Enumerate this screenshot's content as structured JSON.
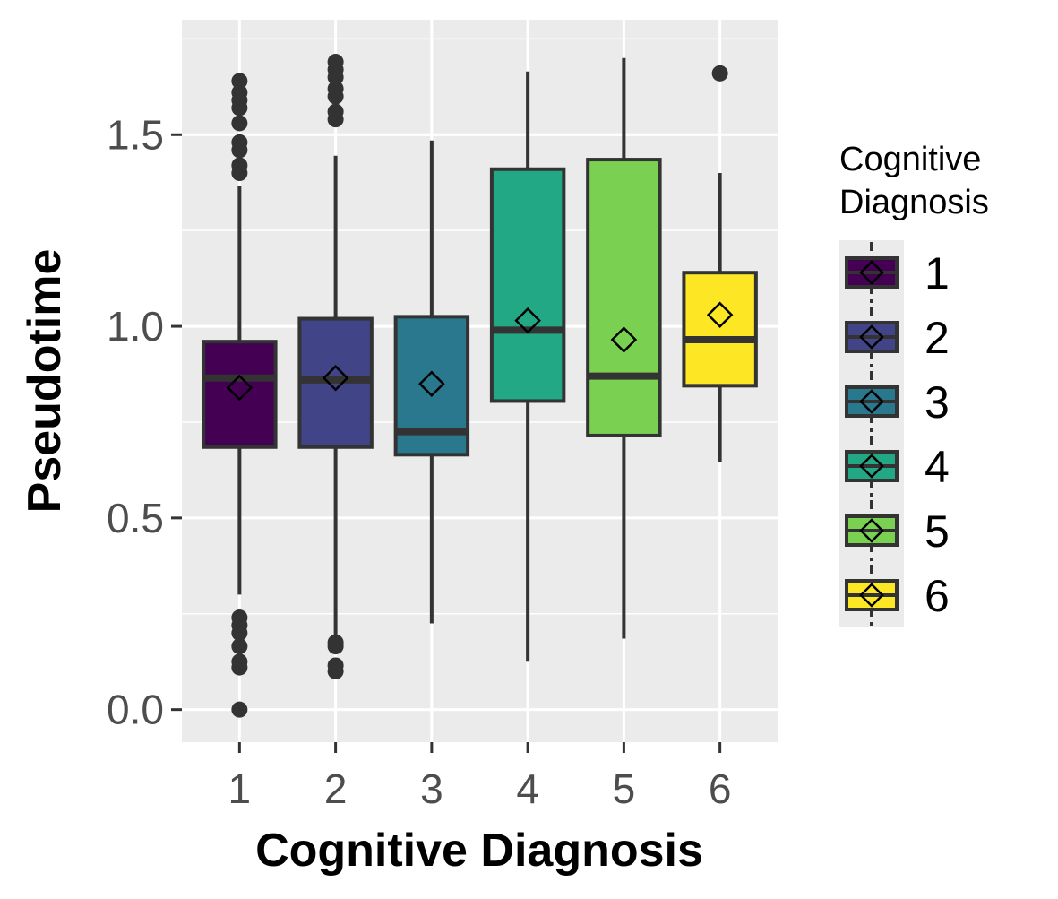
{
  "chart_data": {
    "type": "box",
    "xlabel": "Cognitive Diagnosis",
    "ylabel": "Pseudotime",
    "categories": [
      "1",
      "2",
      "3",
      "4",
      "5",
      "6"
    ],
    "ylim": [
      -0.085,
      1.8
    ],
    "yticks": [
      0.0,
      0.5,
      1.0,
      1.5
    ],
    "ytick_labels": [
      "0.0",
      "0.5",
      "1.0",
      "1.5"
    ],
    "grid": true,
    "legend": {
      "title_lines": [
        "Cognitive",
        "Diagnosis"
      ],
      "placement": "right",
      "entries": [
        "1",
        "2",
        "3",
        "4",
        "5",
        "6"
      ]
    },
    "colors": [
      "#440154",
      "#414487",
      "#2a788e",
      "#22a884",
      "#7ad151",
      "#fde725"
    ],
    "panel_background": "#ebebeb",
    "boxes": [
      {
        "category": "1",
        "whisker_low": 0.3,
        "q1": 0.685,
        "median": 0.865,
        "q3": 0.96,
        "whisker_high": 1.365,
        "mean": 0.84,
        "outliers": [
          0.0,
          0.11,
          0.125,
          0.165,
          0.2,
          0.22,
          0.24,
          1.4,
          1.42,
          1.46,
          1.48,
          1.53,
          1.57,
          1.59,
          1.61,
          1.64
        ]
      },
      {
        "category": "2",
        "whisker_low": 0.185,
        "q1": 0.685,
        "median": 0.86,
        "q3": 1.02,
        "whisker_high": 1.445,
        "mean": 0.865,
        "outliers": [
          0.1,
          0.115,
          0.165,
          0.175,
          1.54,
          1.56,
          1.6,
          1.62,
          1.65,
          1.67,
          1.69
        ]
      },
      {
        "category": "3",
        "whisker_low": 0.225,
        "q1": 0.665,
        "median": 0.725,
        "q3": 1.025,
        "whisker_high": 1.485,
        "mean": 0.85,
        "outliers": []
      },
      {
        "category": "4",
        "whisker_low": 0.125,
        "q1": 0.805,
        "median": 0.99,
        "q3": 1.41,
        "whisker_high": 1.665,
        "mean": 1.015,
        "outliers": []
      },
      {
        "category": "5",
        "whisker_low": 0.185,
        "q1": 0.715,
        "median": 0.87,
        "q3": 1.435,
        "whisker_high": 1.7,
        "mean": 0.965,
        "outliers": []
      },
      {
        "category": "6",
        "whisker_low": 0.645,
        "q1": 0.845,
        "median": 0.965,
        "q3": 1.14,
        "whisker_high": 1.4,
        "mean": 1.03,
        "outliers": [
          1.66
        ]
      }
    ]
  }
}
